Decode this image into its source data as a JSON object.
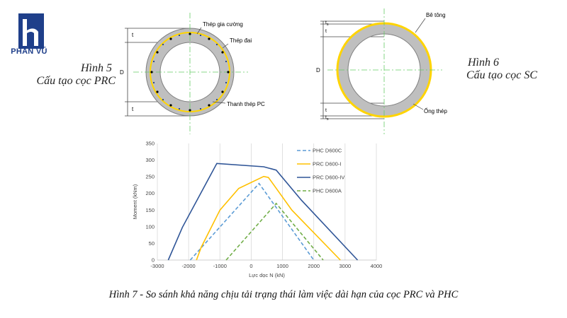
{
  "logo": {
    "text": "PHAN VŨ",
    "color": "#1f3f8a"
  },
  "figure5": {
    "title": "Hình 5",
    "subtitle": "Cấu tạo cọc PRC",
    "labels": {
      "reinforcement": "Thép gia cường",
      "stirrup": "Thép đai",
      "pc_bar": "Thanh thép PC",
      "thickness": "t",
      "diameter": "D"
    }
  },
  "figure6": {
    "title": "Hình 6",
    "subtitle": "Cấu tạo cọc SC",
    "labels": {
      "concrete": "Bê tông",
      "steel_tube": "Ống thép",
      "thickness": "t",
      "steel_thickness": "t",
      "steel_thickness_sub": "s",
      "diameter": "D"
    }
  },
  "caption": "Hình 7 - So sánh khả năng chịu tải trạng thái làm việc dài hạn của cọc PRC và PHC",
  "chart_data": {
    "type": "line",
    "xlabel": "Lực dọc N (kN)",
    "ylabel": "Moment (kNm)",
    "xlim": [
      -3000,
      4000
    ],
    "ylim": [
      0,
      350
    ],
    "x_ticks": [
      -3000,
      -2000,
      -1000,
      0,
      1000,
      2000,
      3000,
      4000
    ],
    "y_ticks": [
      0,
      50,
      100,
      150,
      200,
      250,
      300,
      350
    ],
    "grid": "vertical",
    "legend_position": "top-right",
    "series": [
      {
        "name": "PHC D600C",
        "color": "#5b9bd5",
        "dashed": true,
        "points": [
          [
            -1950,
            0
          ],
          [
            250,
            230
          ],
          [
            2000,
            0
          ]
        ]
      },
      {
        "name": "PRC D600-I",
        "color": "#ffc000",
        "dashed": false,
        "points": [
          [
            -1750,
            0
          ],
          [
            -1600,
            38
          ],
          [
            -1000,
            150
          ],
          [
            -400,
            215
          ],
          [
            400,
            251
          ],
          [
            550,
            248
          ],
          [
            1300,
            150
          ],
          [
            2850,
            0
          ]
        ]
      },
      {
        "name": "PRC D600-IV",
        "color": "#2f5597",
        "dashed": false,
        "points": [
          [
            -2650,
            0
          ],
          [
            -2200,
            98
          ],
          [
            -1100,
            290
          ],
          [
            400,
            280
          ],
          [
            800,
            270
          ],
          [
            1600,
            180
          ],
          [
            3400,
            0
          ]
        ]
      },
      {
        "name": "PHC D600A",
        "color": "#70ad47",
        "dashed": true,
        "points": [
          [
            -800,
            0
          ],
          [
            800,
            170
          ],
          [
            2300,
            0
          ]
        ]
      }
    ]
  }
}
